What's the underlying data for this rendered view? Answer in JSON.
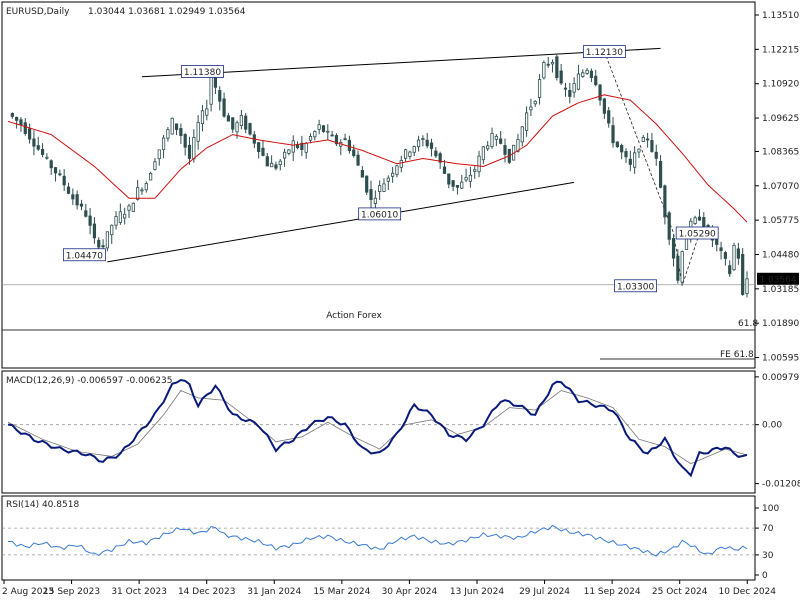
{
  "header": {
    "symbol": "EURUSD,Daily",
    "ohlc": "1.03044 1.03681 1.02949 1.03564"
  },
  "watermark": "Action Forex",
  "colors": {
    "candle": "#2f4f4f",
    "ma": "#d01010",
    "macd_main": "#0a1a7a",
    "macd_signal": "#777777",
    "rsi": "#3a7bd5",
    "grid": "#999999"
  },
  "chart_data": [
    {
      "type": "candlestick",
      "title": "EURUSD,Daily",
      "ylim": [
        1.002,
        1.14
      ],
      "y_ticks": [
        "1.13510",
        "1.12215",
        "1.10920",
        "1.09625",
        "1.08365",
        "1.07070",
        "1.05775",
        "1.04480",
        "1.03185",
        "1.01890",
        "1.00595"
      ],
      "y_tick_values": [
        1.1351,
        1.12215,
        1.1092,
        1.09625,
        1.08365,
        1.0707,
        1.05775,
        1.0448,
        1.03185,
        1.0189,
        1.00595
      ],
      "x_labels": [
        "2 Aug 2023",
        "15 Sep 2023",
        "31 Oct 2023",
        "14 Dec 2023",
        "31 Jan 2024",
        "15 Mar 2024",
        "30 Apr 2024",
        "13 Jun 2024",
        "29 Jul 2024",
        "11 Sep 2024",
        "25 Oct 2024",
        "10 Dec 2024"
      ],
      "close_path": [
        [
          0,
          1.098
        ],
        [
          3,
          1.094
        ],
        [
          6,
          1.087
        ],
        [
          9,
          1.08
        ],
        [
          12,
          1.074
        ],
        [
          15,
          1.066
        ],
        [
          18,
          1.06
        ],
        [
          20,
          1.05
        ],
        [
          22,
          1.048
        ],
        [
          24,
          1.056
        ],
        [
          26,
          1.06
        ],
        [
          28,
          1.062
        ],
        [
          30,
          1.069
        ],
        [
          32,
          1.072
        ],
        [
          34,
          1.081
        ],
        [
          36,
          1.088
        ],
        [
          38,
          1.095
        ],
        [
          40,
          1.09
        ],
        [
          42,
          1.081
        ],
        [
          44,
          1.094
        ],
        [
          46,
          1.101
        ],
        [
          47,
          1.112
        ],
        [
          48,
          1.108
        ],
        [
          50,
          1.098
        ],
        [
          52,
          1.092
        ],
        [
          54,
          1.096
        ],
        [
          56,
          1.09
        ],
        [
          58,
          1.085
        ],
        [
          60,
          1.079
        ],
        [
          62,
          1.078
        ],
        [
          64,
          1.082
        ],
        [
          66,
          1.087
        ],
        [
          68,
          1.084
        ],
        [
          70,
          1.089
        ],
        [
          72,
          1.093
        ],
        [
          74,
          1.09
        ],
        [
          76,
          1.087
        ],
        [
          78,
          1.088
        ],
        [
          80,
          1.082
        ],
        [
          82,
          1.074
        ],
        [
          84,
          1.065
        ],
        [
          86,
          1.07
        ],
        [
          88,
          1.074
        ],
        [
          90,
          1.079
        ],
        [
          92,
          1.083
        ],
        [
          94,
          1.086
        ],
        [
          96,
          1.088
        ],
        [
          98,
          1.085
        ],
        [
          100,
          1.079
        ],
        [
          102,
          1.072
        ],
        [
          104,
          1.07
        ],
        [
          106,
          1.073
        ],
        [
          108,
          1.077
        ],
        [
          110,
          1.085
        ],
        [
          112,
          1.089
        ],
        [
          114,
          1.087
        ],
        [
          116,
          1.081
        ],
        [
          118,
          1.088
        ],
        [
          120,
          1.098
        ],
        [
          122,
          1.104
        ],
        [
          124,
          1.116
        ],
        [
          126,
          1.118
        ],
        [
          128,
          1.108
        ],
        [
          130,
          1.105
        ],
        [
          132,
          1.112
        ],
        [
          134,
          1.115
        ],
        [
          136,
          1.11
        ],
        [
          138,
          1.098
        ],
        [
          140,
          1.088
        ],
        [
          142,
          1.083
        ],
        [
          144,
          1.078
        ],
        [
          146,
          1.086
        ],
        [
          148,
          1.089
        ],
        [
          150,
          1.08
        ],
        [
          151,
          1.07
        ],
        [
          152,
          1.06
        ],
        [
          153,
          1.052
        ],
        [
          154,
          1.044
        ],
        [
          155,
          1.035
        ],
        [
          156,
          1.047
        ],
        [
          158,
          1.056
        ],
        [
          160,
          1.059
        ],
        [
          162,
          1.053
        ],
        [
          164,
          1.048
        ],
        [
          166,
          1.042
        ],
        [
          167,
          1.038
        ],
        [
          168,
          1.048
        ],
        [
          169,
          1.044
        ],
        [
          170,
          1.029
        ],
        [
          171,
          1.0356
        ]
      ],
      "ma_path": [
        [
          0,
          1.095
        ],
        [
          10,
          1.09
        ],
        [
          20,
          1.078
        ],
        [
          28,
          1.066
        ],
        [
          34,
          1.066
        ],
        [
          40,
          1.077
        ],
        [
          46,
          1.085
        ],
        [
          52,
          1.09
        ],
        [
          58,
          1.088
        ],
        [
          66,
          1.086
        ],
        [
          74,
          1.088
        ],
        [
          82,
          1.084
        ],
        [
          90,
          1.079
        ],
        [
          96,
          1.081
        ],
        [
          104,
          1.079
        ],
        [
          110,
          1.078
        ],
        [
          116,
          1.082
        ],
        [
          120,
          1.086
        ],
        [
          126,
          1.097
        ],
        [
          132,
          1.102
        ],
        [
          138,
          1.105
        ],
        [
          144,
          1.103
        ],
        [
          150,
          1.094
        ],
        [
          156,
          1.083
        ],
        [
          162,
          1.071
        ],
        [
          168,
          1.062
        ],
        [
          171,
          1.057
        ]
      ],
      "price_labels": [
        {
          "text": "1.04470",
          "x": 23,
          "y": 1.0447
        },
        {
          "text": "1.11380",
          "x": 45,
          "y": 1.1138
        },
        {
          "text": "1.06010",
          "x": 86,
          "y": 1.0601
        },
        {
          "text": "1.12130",
          "x": 138,
          "y": 1.1213
        },
        {
          "text": "1.05290",
          "x": 156,
          "y": 1.0529
        },
        {
          "text": "1.03300",
          "x": 151,
          "y": 1.033
        }
      ],
      "annotations": [
        "61.8",
        "FE 61.8"
      ],
      "current_price": "1.03564",
      "current_value": 1.03564
    },
    {
      "type": "line",
      "title": "MACD(12,26,9) -0.006597 -0.006235",
      "ylim": [
        -0.014,
        0.011
      ],
      "y_ticks": [
        "0.009795",
        "0.00",
        "-0.012081"
      ],
      "y_tick_values": [
        0.009795,
        0.0,
        -0.012081
      ],
      "main_path": [
        [
          0,
          0.0
        ],
        [
          6,
          -0.003
        ],
        [
          12,
          -0.005
        ],
        [
          18,
          -0.006
        ],
        [
          22,
          -0.0075
        ],
        [
          26,
          -0.006
        ],
        [
          30,
          -0.002
        ],
        [
          34,
          0.002
        ],
        [
          38,
          0.008
        ],
        [
          40,
          0.0095
        ],
        [
          42,
          0.008
        ],
        [
          44,
          0.004
        ],
        [
          48,
          0.008
        ],
        [
          52,
          0.002
        ],
        [
          58,
          0.0
        ],
        [
          62,
          -0.005
        ],
        [
          66,
          -0.003
        ],
        [
          70,
          0.0
        ],
        [
          74,
          0.0015
        ],
        [
          78,
          0.0
        ],
        [
          82,
          -0.005
        ],
        [
          86,
          -0.006
        ],
        [
          90,
          -0.002
        ],
        [
          94,
          0.004
        ],
        [
          98,
          0.002
        ],
        [
          102,
          -0.002
        ],
        [
          106,
          -0.003
        ],
        [
          110,
          0.0
        ],
        [
          114,
          0.005
        ],
        [
          118,
          0.004
        ],
        [
          122,
          0.002
        ],
        [
          126,
          0.008
        ],
        [
          128,
          0.009
        ],
        [
          132,
          0.005
        ],
        [
          136,
          0.004
        ],
        [
          140,
          0.003
        ],
        [
          144,
          -0.003
        ],
        [
          148,
          -0.006
        ],
        [
          152,
          -0.003
        ],
        [
          154,
          -0.006
        ],
        [
          156,
          -0.009
        ],
        [
          158,
          -0.01
        ],
        [
          160,
          -0.006
        ],
        [
          162,
          -0.0055
        ],
        [
          164,
          -0.005
        ],
        [
          166,
          -0.0045
        ],
        [
          168,
          -0.006
        ],
        [
          171,
          -0.0066
        ]
      ],
      "signal_path": [
        [
          0,
          0.0005
        ],
        [
          8,
          -0.003
        ],
        [
          16,
          -0.0055
        ],
        [
          24,
          -0.0065
        ],
        [
          30,
          -0.004
        ],
        [
          36,
          0.002
        ],
        [
          40,
          0.007
        ],
        [
          44,
          0.0055
        ],
        [
          50,
          0.005
        ],
        [
          56,
          0.001
        ],
        [
          62,
          -0.0035
        ],
        [
          68,
          -0.0025
        ],
        [
          74,
          0.0005
        ],
        [
          80,
          -0.0025
        ],
        [
          86,
          -0.005
        ],
        [
          92,
          0.0
        ],
        [
          98,
          0.001
        ],
        [
          104,
          -0.002
        ],
        [
          110,
          -0.0005
        ],
        [
          116,
          0.0035
        ],
        [
          122,
          0.003
        ],
        [
          128,
          0.007
        ],
        [
          134,
          0.0055
        ],
        [
          140,
          0.0035
        ],
        [
          146,
          -0.003
        ],
        [
          152,
          -0.0045
        ],
        [
          158,
          -0.008
        ],
        [
          162,
          -0.0065
        ],
        [
          166,
          -0.005
        ],
        [
          171,
          -0.0062
        ]
      ]
    },
    {
      "type": "line",
      "title": "RSI(14) 40.8518",
      "ylim": [
        0,
        100
      ],
      "y_ticks": [
        "100",
        "70",
        "30",
        "0"
      ],
      "y_tick_values": [
        100,
        70,
        30,
        0
      ],
      "rsi_path": [
        [
          0,
          50
        ],
        [
          4,
          42
        ],
        [
          8,
          48
        ],
        [
          12,
          40
        ],
        [
          16,
          45
        ],
        [
          20,
          30
        ],
        [
          24,
          38
        ],
        [
          28,
          50
        ],
        [
          32,
          48
        ],
        [
          36,
          60
        ],
        [
          40,
          70
        ],
        [
          44,
          62
        ],
        [
          48,
          72
        ],
        [
          50,
          60
        ],
        [
          54,
          55
        ],
        [
          58,
          50
        ],
        [
          62,
          40
        ],
        [
          66,
          45
        ],
        [
          70,
          55
        ],
        [
          74,
          58
        ],
        [
          78,
          50
        ],
        [
          82,
          45
        ],
        [
          86,
          38
        ],
        [
          90,
          52
        ],
        [
          94,
          58
        ],
        [
          98,
          50
        ],
        [
          102,
          46
        ],
        [
          106,
          52
        ],
        [
          110,
          60
        ],
        [
          114,
          58
        ],
        [
          118,
          55
        ],
        [
          122,
          65
        ],
        [
          126,
          72
        ],
        [
          130,
          64
        ],
        [
          134,
          60
        ],
        [
          138,
          52
        ],
        [
          142,
          45
        ],
        [
          146,
          38
        ],
        [
          150,
          30
        ],
        [
          154,
          40
        ],
        [
          156,
          50
        ],
        [
          158,
          45
        ],
        [
          160,
          36
        ],
        [
          162,
          30
        ],
        [
          164,
          38
        ],
        [
          166,
          42
        ],
        [
          168,
          38
        ],
        [
          171,
          41
        ]
      ]
    }
  ]
}
